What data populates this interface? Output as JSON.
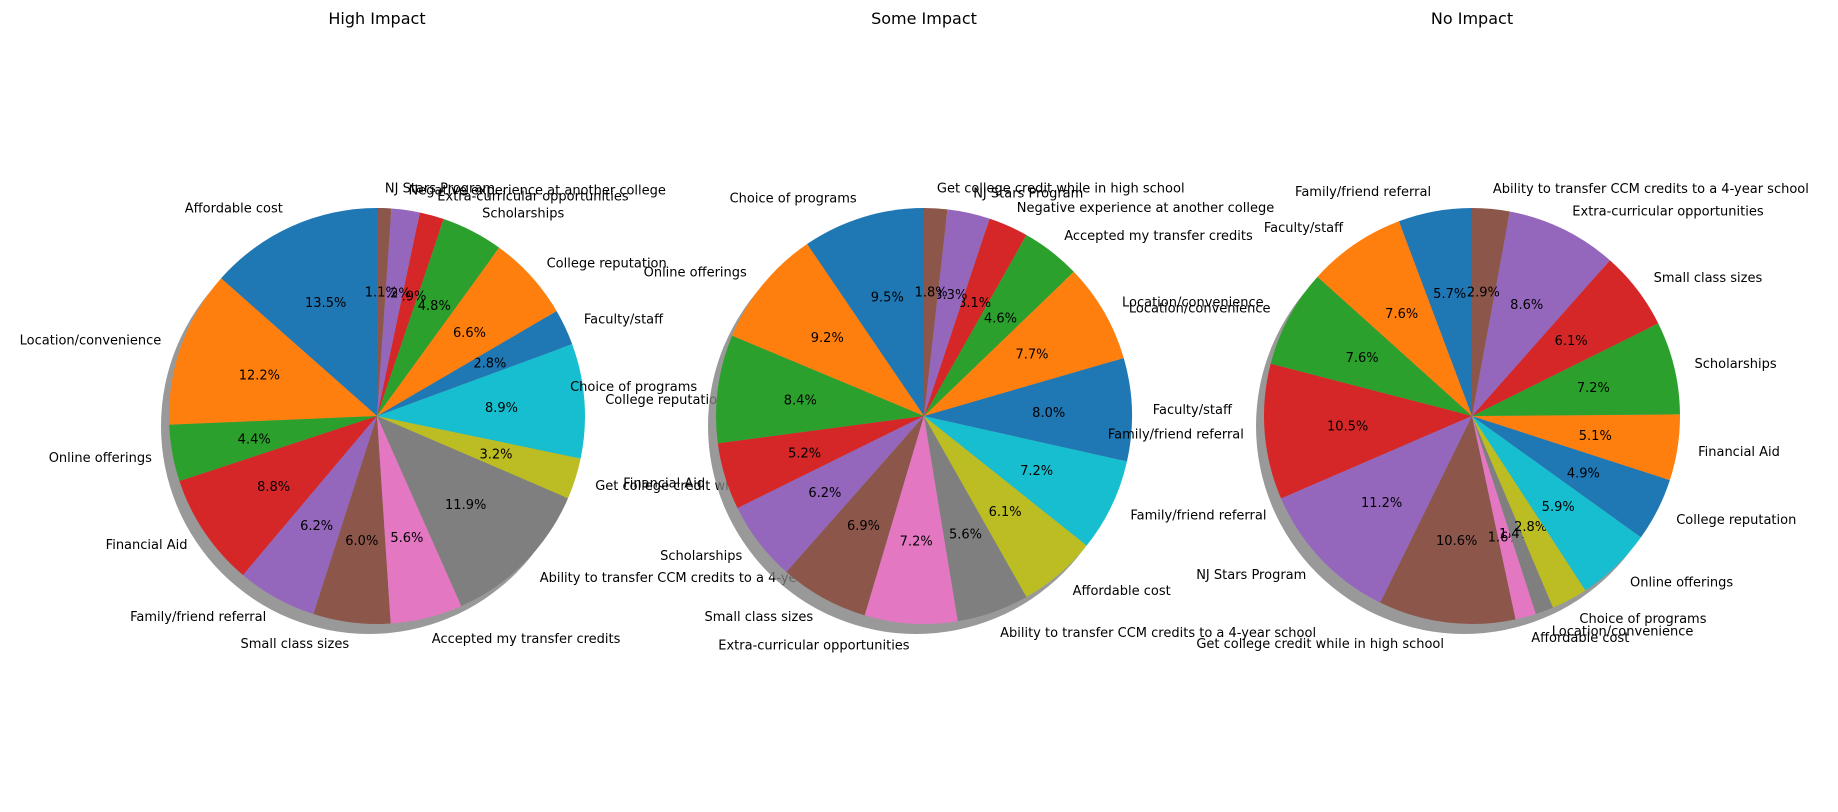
{
  "chart_data": [
    {
      "type": "pie",
      "title": "High Impact",
      "start_angle_deg": 90,
      "direction": "counterclockwise",
      "shadow": true,
      "slices": [
        {
          "label": "Affordable cost",
          "value": 13.5,
          "pct_label": "13.5%",
          "color": "#1f77b4"
        },
        {
          "label": "Location/convenience",
          "value": 12.2,
          "pct_label": "12.2%",
          "color": "#ff7f0e"
        },
        {
          "label": "Online offerings",
          "value": 4.4,
          "pct_label": "4.4%",
          "color": "#2ca02c"
        },
        {
          "label": "Financial Aid",
          "value": 8.8,
          "pct_label": "8.8%",
          "color": "#d62728"
        },
        {
          "label": "Family/friend referral",
          "value": 6.2,
          "pct_label": "6.2%",
          "color": "#9467bd"
        },
        {
          "label": "Small class sizes",
          "value": 6.0,
          "pct_label": "6.0%",
          "color": "#8c564b"
        },
        {
          "label": "Accepted my transfer credits",
          "value": 5.6,
          "pct_label": "5.6%",
          "color": "#e377c2"
        },
        {
          "label": "Ability to transfer CCM credits to a 4-year school",
          "value": 11.9,
          "pct_label": "11.9%",
          "color": "#7f7f7f"
        },
        {
          "label": "Get college credit while in high school",
          "value": 3.2,
          "pct_label": "3.2%",
          "color": "#bcbd22"
        },
        {
          "label": "College reputation",
          "value": 8.9,
          "pct_label": "8.9%",
          "color": "#17becf"
        },
        {
          "label": "Faculty/staff",
          "value": 2.8,
          "pct_label": "2.8%",
          "color": "#1f77b4"
        },
        {
          "label": "College reputation",
          "value": 6.6,
          "pct_label": "6.6%",
          "color": "#ff7f0e"
        },
        {
          "label": "Scholarships",
          "value": 4.8,
          "pct_label": "4.8%",
          "color": "#2ca02c"
        },
        {
          "label": "Extra-curricular opportunities",
          "value": 1.9,
          "pct_label": "1.9%",
          "color": "#d62728"
        },
        {
          "label": "Negative experience at another college",
          "value": 2.2,
          "pct_label": "2.2%",
          "color": "#9467bd"
        },
        {
          "label": "NJ Stars Program",
          "value": 1.1,
          "pct_label": "1.1%",
          "color": "#8c564b"
        }
      ]
    },
    {
      "type": "pie",
      "title": "Some Impact",
      "start_angle_deg": 90,
      "direction": "counterclockwise",
      "shadow": true,
      "slices": [
        {
          "label": "Choice of programs",
          "value": 9.5,
          "pct_label": "9.5%",
          "color": "#1f77b4"
        },
        {
          "label": "Online offerings",
          "value": 9.2,
          "pct_label": "9.2%",
          "color": "#ff7f0e"
        },
        {
          "label": "Choice of programs",
          "value": 8.4,
          "pct_label": "8.4%",
          "color": "#2ca02c"
        },
        {
          "label": "Financial Aid",
          "value": 5.2,
          "pct_label": "5.2%",
          "color": "#d62728"
        },
        {
          "label": "Scholarships",
          "value": 6.2,
          "pct_label": "6.2%",
          "color": "#9467bd"
        },
        {
          "label": "Small class sizes",
          "value": 6.9,
          "pct_label": "6.9%",
          "color": "#8c564b"
        },
        {
          "label": "Extra-curricular opportunities",
          "value": 7.2,
          "pct_label": "7.2%",
          "color": "#e377c2"
        },
        {
          "label": "Ability to transfer CCM credits to a 4-year school",
          "value": 5.6,
          "pct_label": "5.6%",
          "color": "#7f7f7f"
        },
        {
          "label": "Affordable cost",
          "value": 6.1,
          "pct_label": "6.1%",
          "color": "#bcbd22"
        },
        {
          "label": "Family/friend referral",
          "value": 7.2,
          "pct_label": "7.2%",
          "color": "#17becf"
        },
        {
          "label": "Faculty/staff",
          "value": 8.0,
          "pct_label": "8.0%",
          "color": "#1f77b4"
        },
        {
          "label": "Location/convenience",
          "value": 7.7,
          "pct_label": "7.7%",
          "color": "#ff7f0e"
        },
        {
          "label": "Accepted my transfer credits",
          "value": 4.6,
          "pct_label": "4.6%",
          "color": "#2ca02c"
        },
        {
          "label": "Negative experience at another college",
          "value": 3.1,
          "pct_label": "3.1%",
          "color": "#d62728"
        },
        {
          "label": "NJ Stars Program",
          "value": 3.3,
          "pct_label": "3.3%",
          "color": "#9467bd"
        },
        {
          "label": "Get college credit while in high school",
          "value": 1.8,
          "pct_label": "1.8%",
          "color": "#8c564b"
        }
      ]
    },
    {
      "type": "pie",
      "title": "No Impact",
      "start_angle_deg": 90,
      "direction": "counterclockwise",
      "shadow": true,
      "slices": [
        {
          "label": "Family/friend referral",
          "value": 5.7,
          "pct_label": "5.7%",
          "color": "#1f77b4"
        },
        {
          "label": "Faculty/staff",
          "value": 7.6,
          "pct_label": "7.6%",
          "color": "#ff7f0e"
        },
        {
          "label": "Location/convenience",
          "value": 7.6,
          "pct_label": "7.6%",
          "color": "#2ca02c"
        },
        {
          "label": "Family/friend referral",
          "value": 10.5,
          "pct_label": "10.5%",
          "color": "#d62728"
        },
        {
          "label": "NJ Stars Program",
          "value": 11.2,
          "pct_label": "11.2%",
          "color": "#9467bd"
        },
        {
          "label": "Get college credit while in high school",
          "value": 10.6,
          "pct_label": "10.6%",
          "color": "#8c564b"
        },
        {
          "label": "Affordable cost",
          "value": 1.6,
          "pct_label": "1.6%",
          "color": "#e377c2"
        },
        {
          "label": "Location/convenience",
          "value": 1.4,
          "pct_label": "1.4%",
          "color": "#7f7f7f"
        },
        {
          "label": "Choice of programs",
          "value": 2.8,
          "pct_label": "2.8%",
          "color": "#bcbd22"
        },
        {
          "label": "Online offerings",
          "value": 5.9,
          "pct_label": "5.9%",
          "color": "#17becf"
        },
        {
          "label": "College reputation",
          "value": 4.9,
          "pct_label": "4.9%",
          "color": "#1f77b4"
        },
        {
          "label": "Financial Aid",
          "value": 5.1,
          "pct_label": "5.1%",
          "color": "#ff7f0e"
        },
        {
          "label": "Scholarships",
          "value": 7.2,
          "pct_label": "7.2%",
          "color": "#2ca02c"
        },
        {
          "label": "Small class sizes",
          "value": 6.1,
          "pct_label": "6.1%",
          "color": "#d62728"
        },
        {
          "label": "Extra-curricular opportunities",
          "value": 8.6,
          "pct_label": "8.6%",
          "color": "#9467bd"
        },
        {
          "label": "Ability to transfer CCM credits to a 4-year school",
          "value": 2.9,
          "pct_label": "2.9%",
          "color": "#8c564b"
        }
      ]
    }
  ]
}
